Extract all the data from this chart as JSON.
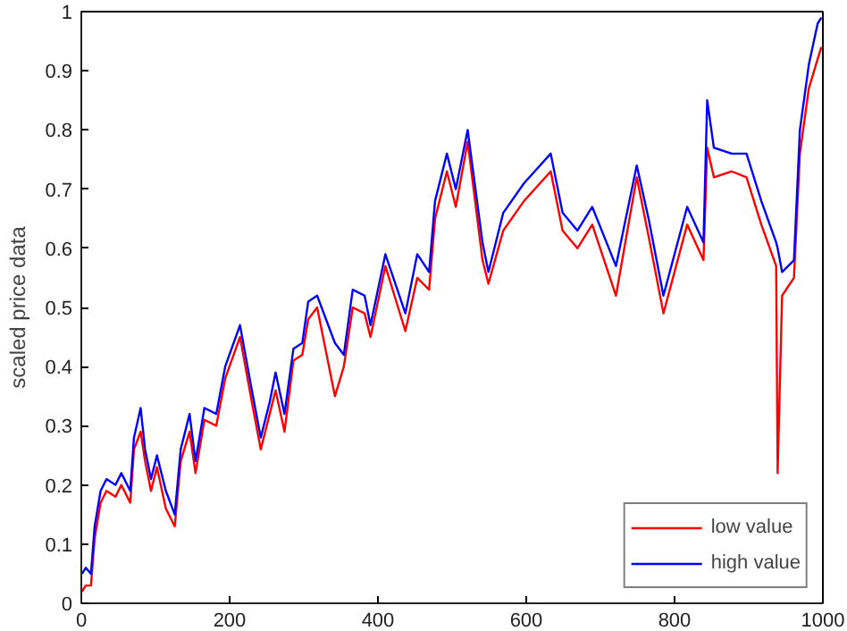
{
  "chart_data": {
    "type": "line",
    "ylabel": "scaled price data",
    "xlim": [
      0,
      1000
    ],
    "ylim": [
      0,
      1
    ],
    "xticks": [
      0,
      200,
      400,
      600,
      800,
      1000
    ],
    "yticks": [
      0,
      0.1,
      0.2,
      0.3,
      0.4,
      0.5,
      0.6,
      0.7,
      0.8,
      0.9,
      1
    ],
    "x": [
      1,
      6,
      13,
      18,
      26,
      34,
      46,
      54,
      66,
      71,
      80,
      86,
      94,
      102,
      114,
      126,
      134,
      146,
      154,
      166,
      182,
      194,
      214,
      230,
      242,
      254,
      262,
      274,
      286,
      298,
      306,
      318,
      342,
      354,
      366,
      382,
      390,
      410,
      437,
      453,
      469,
      477,
      493,
      505,
      521,
      541,
      549,
      569,
      597,
      633,
      649,
      669,
      689,
      721,
      749,
      765,
      785,
      817,
      839,
      844,
      853,
      877,
      897,
      917,
      937,
      939,
      945,
      961,
      969,
      981,
      993,
      998
    ],
    "series": [
      {
        "name": "low value",
        "color": "#ff0000",
        "values": [
          0.02,
          0.03,
          0.03,
          0.11,
          0.17,
          0.19,
          0.18,
          0.2,
          0.17,
          0.26,
          0.29,
          0.24,
          0.19,
          0.23,
          0.16,
          0.13,
          0.24,
          0.29,
          0.22,
          0.31,
          0.3,
          0.38,
          0.45,
          0.34,
          0.26,
          0.32,
          0.36,
          0.29,
          0.41,
          0.42,
          0.48,
          0.5,
          0.35,
          0.4,
          0.5,
          0.49,
          0.45,
          0.57,
          0.46,
          0.55,
          0.53,
          0.65,
          0.73,
          0.67,
          0.78,
          0.58,
          0.54,
          0.63,
          0.68,
          0.73,
          0.63,
          0.6,
          0.64,
          0.52,
          0.72,
          0.62,
          0.49,
          0.64,
          0.58,
          0.77,
          0.72,
          0.73,
          0.72,
          0.64,
          0.57,
          0.22,
          0.52,
          0.55,
          0.76,
          0.87,
          0.92,
          0.94
        ]
      },
      {
        "name": "high value",
        "color": "#0000ff",
        "values": [
          0.05,
          0.06,
          0.05,
          0.13,
          0.19,
          0.21,
          0.2,
          0.22,
          0.19,
          0.28,
          0.33,
          0.26,
          0.21,
          0.25,
          0.19,
          0.15,
          0.26,
          0.32,
          0.24,
          0.33,
          0.32,
          0.4,
          0.47,
          0.36,
          0.28,
          0.34,
          0.39,
          0.32,
          0.43,
          0.44,
          0.51,
          0.52,
          0.44,
          0.42,
          0.53,
          0.52,
          0.47,
          0.59,
          0.49,
          0.59,
          0.56,
          0.68,
          0.76,
          0.7,
          0.8,
          0.61,
          0.56,
          0.66,
          0.71,
          0.76,
          0.66,
          0.63,
          0.67,
          0.57,
          0.74,
          0.65,
          0.52,
          0.67,
          0.61,
          0.85,
          0.77,
          0.76,
          0.76,
          0.68,
          0.61,
          0.6,
          0.56,
          0.58,
          0.8,
          0.91,
          0.98,
          0.99
        ]
      }
    ],
    "legend": "bottom right",
    "grid": false,
    "marker": "none",
    "line_style": "solid"
  }
}
